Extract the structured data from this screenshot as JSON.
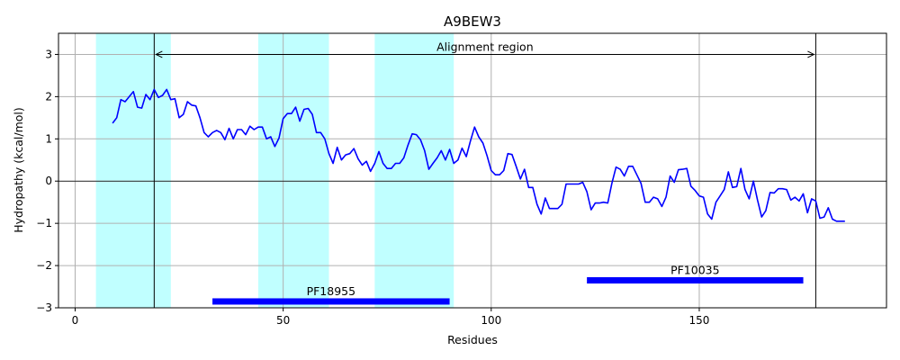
{
  "chart_data": {
    "type": "line",
    "title": "A9BEW3",
    "xlabel": "Residues",
    "ylabel": "Hydropathy (kcal/mol)",
    "xlim": [
      -4,
      195
    ],
    "ylim": [
      -3,
      3.5
    ],
    "xticks": [
      0,
      50,
      100,
      150
    ],
    "yticks": [
      -3,
      -2,
      -1,
      0,
      1,
      2,
      3
    ],
    "grid": true,
    "colors": {
      "line": "#0000ff",
      "shade": "#c0ffff",
      "domain_bar": "#0000ff",
      "zero_line": "#000000"
    },
    "shaded_regions": [
      [
        5,
        23
      ],
      [
        44,
        61
      ],
      [
        72,
        91
      ]
    ],
    "vertical_lines": [
      19,
      178
    ],
    "alignment": {
      "label": "Alignment region",
      "x_start": 19,
      "x_end": 178,
      "y": 3.0
    },
    "domains": [
      {
        "label": "PF18955",
        "x_start": 33,
        "x_end": 90,
        "y": -2.85
      },
      {
        "label": "PF10035",
        "x_start": 123,
        "x_end": 175,
        "y": -2.35
      }
    ],
    "x": [
      9,
      10,
      11,
      12,
      13,
      14,
      15,
      16,
      17,
      18,
      19,
      20,
      21,
      22,
      23,
      24,
      25,
      26,
      27,
      28,
      29,
      30,
      31,
      32,
      33,
      34,
      35,
      36,
      37,
      38,
      39,
      40,
      41,
      42,
      43,
      44,
      45,
      46,
      47,
      48,
      49,
      50,
      51,
      52,
      53,
      54,
      55,
      56,
      57,
      58,
      59,
      60,
      61,
      62,
      63,
      64,
      65,
      66,
      67,
      68,
      69,
      70,
      71,
      72,
      73,
      74,
      75,
      76,
      77,
      78,
      79,
      80,
      81,
      82,
      83,
      84,
      85,
      86,
      87,
      88,
      89,
      90,
      91,
      92,
      93,
      94,
      95,
      96,
      97,
      98,
      99,
      100,
      101,
      102,
      103,
      104,
      105,
      106,
      107,
      108,
      109,
      110,
      111,
      112,
      113,
      114,
      115,
      116,
      117,
      118,
      119,
      120,
      121,
      122,
      123,
      124,
      125,
      126,
      127,
      128,
      129,
      130,
      131,
      132,
      133,
      134,
      135,
      136,
      137,
      138,
      139,
      140,
      141,
      142,
      143,
      144,
      145,
      146,
      147,
      148,
      149,
      150,
      151,
      152,
      153,
      154,
      155,
      156,
      157,
      158,
      159,
      160,
      161,
      162,
      163,
      164,
      165,
      166,
      167,
      168,
      169,
      170,
      171,
      172,
      173,
      174,
      175,
      176,
      177,
      178,
      179,
      180,
      181,
      182,
      183,
      184,
      185
    ],
    "values": [
      1.37,
      1.5,
      1.93,
      1.88,
      2.0,
      2.12,
      1.75,
      1.73,
      2.05,
      1.93,
      2.17,
      1.98,
      2.03,
      2.17,
      1.93,
      1.95,
      1.5,
      1.58,
      1.88,
      1.8,
      1.78,
      1.5,
      1.15,
      1.05,
      1.15,
      1.2,
      1.15,
      0.98,
      1.25,
      1.0,
      1.22,
      1.22,
      1.1,
      1.3,
      1.22,
      1.28,
      1.28,
      1.0,
      1.05,
      0.82,
      1.02,
      1.48,
      1.6,
      1.6,
      1.75,
      1.42,
      1.7,
      1.72,
      1.58,
      1.15,
      1.15,
      1.0,
      0.65,
      0.42,
      0.8,
      0.5,
      0.62,
      0.65,
      0.77,
      0.53,
      0.38,
      0.47,
      0.23,
      0.42,
      0.7,
      0.42,
      0.3,
      0.3,
      0.42,
      0.42,
      0.55,
      0.85,
      1.12,
      1.1,
      0.98,
      0.72,
      0.28,
      0.42,
      0.55,
      0.72,
      0.5,
      0.75,
      0.42,
      0.5,
      0.78,
      0.58,
      0.95,
      1.28,
      1.05,
      0.9,
      0.6,
      0.25,
      0.15,
      0.15,
      0.25,
      0.65,
      0.63,
      0.35,
      0.05,
      0.28,
      -0.15,
      -0.15,
      -0.55,
      -0.78,
      -0.4,
      -0.65,
      -0.65,
      -0.65,
      -0.55,
      -0.07,
      -0.07,
      -0.07,
      -0.07,
      -0.03,
      -0.25,
      -0.68,
      -0.52,
      -0.52,
      -0.5,
      -0.52,
      -0.05,
      0.33,
      0.28,
      0.12,
      0.35,
      0.35,
      0.15,
      -0.05,
      -0.5,
      -0.5,
      -0.38,
      -0.42,
      -0.6,
      -0.38,
      0.12,
      -0.03,
      0.27,
      0.28,
      0.3,
      -0.12,
      -0.22,
      -0.35,
      -0.38,
      -0.78,
      -0.9,
      -0.5,
      -0.35,
      -0.2,
      0.22,
      -0.15,
      -0.13,
      0.3,
      -0.2,
      -0.42,
      0.0,
      -0.45,
      -0.85,
      -0.7,
      -0.27,
      -0.28,
      -0.18,
      -0.18,
      -0.2,
      -0.45,
      -0.38,
      -0.47,
      -0.3,
      -0.75,
      -0.42,
      -0.47,
      -0.88,
      -0.85,
      -0.63,
      -0.9,
      -0.95,
      -0.95,
      -0.95
    ]
  }
}
